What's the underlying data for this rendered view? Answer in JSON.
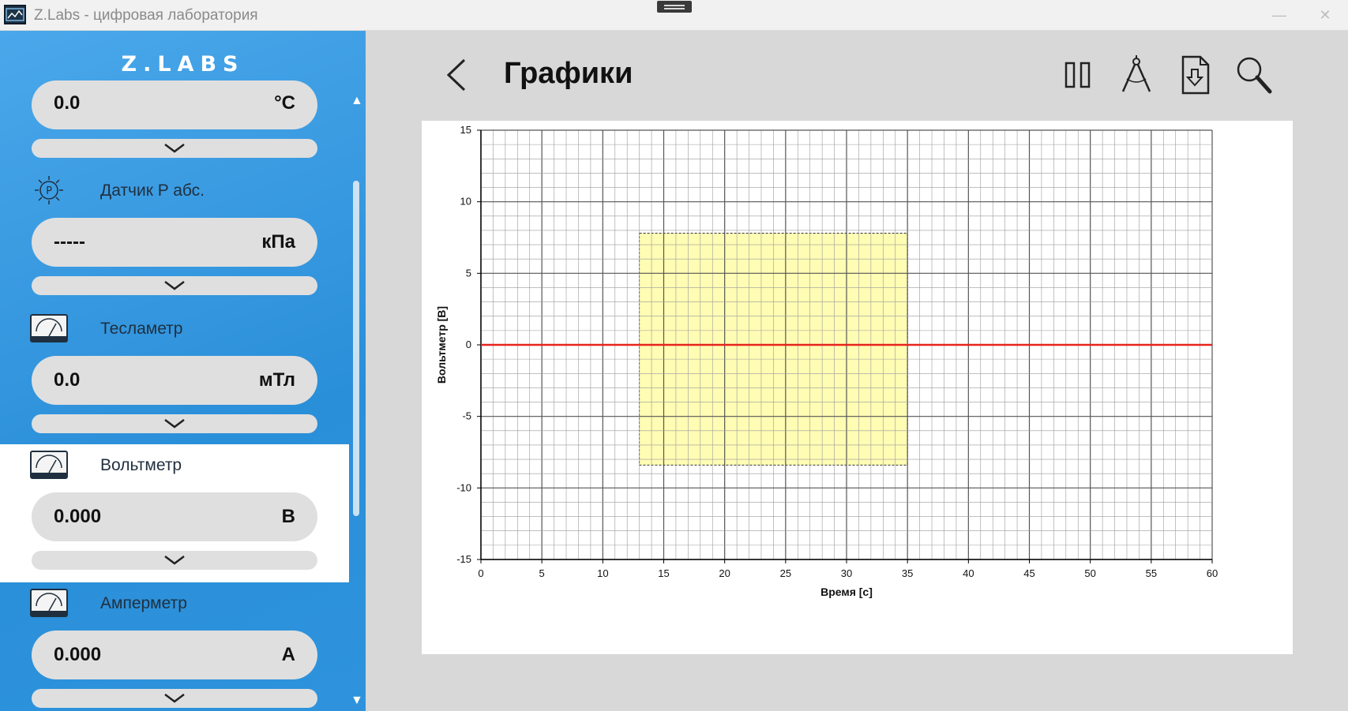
{
  "window": {
    "title": "Z.Labs - цифровая лаборатория",
    "minimize_glyph": "—",
    "close_glyph": "✕"
  },
  "sidebar": {
    "logo": "Z.LABS",
    "scroll_up_glyph": "▲",
    "scroll_down_glyph": "▼",
    "sensors": [
      {
        "name": "",
        "value": "0.0",
        "unit": "°C",
        "icon": "thermometer-icon",
        "active": false
      },
      {
        "name": "Датчик P абс.",
        "value": "-----",
        "unit": "кПа",
        "icon": "pressure-sensor-icon",
        "active": false
      },
      {
        "name": "Тесламетр",
        "value": "0.0",
        "unit": "мТл",
        "icon": "gauge-icon",
        "active": false
      },
      {
        "name": "Вольтметр",
        "value": "0.000",
        "unit": "В",
        "icon": "voltmeter-icon",
        "active": true
      },
      {
        "name": "Амперметр",
        "value": "0.000",
        "unit": "А",
        "icon": "ammeter-icon",
        "active": false
      }
    ]
  },
  "main": {
    "title": "Графики",
    "toolbar": [
      "pause-icon",
      "compass-icon",
      "export-icon",
      "zoom-icon"
    ]
  },
  "chart_data": {
    "type": "line",
    "xlabel": "Время [с]",
    "ylabel": "Вольтметр [В]",
    "xlim": [
      0,
      60
    ],
    "ylim": [
      -15,
      15
    ],
    "xticks": [
      0,
      5,
      10,
      15,
      20,
      25,
      30,
      35,
      40,
      45,
      50,
      55,
      60
    ],
    "yticks": [
      -15,
      -10,
      -5,
      0,
      5,
      10,
      15
    ],
    "grid": true,
    "series": [
      {
        "x": [
          0,
          60
        ],
        "y": [
          0,
          0
        ],
        "color": "#e8231d"
      }
    ],
    "selection": {
      "x": [
        13,
        35
      ],
      "y": [
        -8.4,
        7.8
      ],
      "color": "#fffcb4"
    }
  }
}
